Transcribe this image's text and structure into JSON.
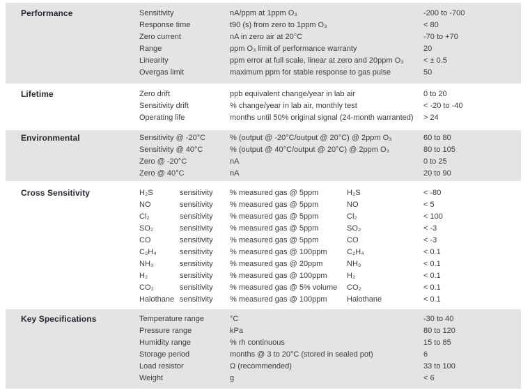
{
  "page": {
    "band_color": "#e4e4e4",
    "text_color": "#3b3b40",
    "title_color": "#26262e"
  },
  "sections": [
    {
      "title": "Performance",
      "shaded": true,
      "layout": "standard",
      "rows": [
        {
          "param": "Sensitivity",
          "desc": "nA/ppm at 1ppm O₃",
          "value": "-200 to -700"
        },
        {
          "param": "Response time",
          "desc": "t90 (s) from zero to 1ppm O₃",
          "value": "< 80"
        },
        {
          "param": "Zero current",
          "desc": "nA in zero air at 20°C",
          "value": "-70 to +70"
        },
        {
          "param": "Range",
          "desc": "ppm O₃ limit of performance warranty",
          "value": "20"
        },
        {
          "param": "Linearity",
          "desc": "ppm error at full scale, linear at zero and 20ppm O₃",
          "value": "< ± 0.5"
        },
        {
          "param": "Overgas limit",
          "desc": "maximum ppm for stable response to gas pulse",
          "value": "50"
        }
      ]
    },
    {
      "title": "Lifetime",
      "shaded": false,
      "layout": "standard",
      "rows": [
        {
          "param": "Zero drift",
          "desc": "ppb equivalent change/year in lab air",
          "value": "0 to 20"
        },
        {
          "param": "Sensitivity drift",
          "desc": "% change/year in lab air, monthly test",
          "value": "< -20 to -40"
        },
        {
          "param": "Operating life",
          "desc": "months until 50% original signal (24-month warranted)",
          "value": "> 24"
        }
      ]
    },
    {
      "title": "Environmental",
      "shaded": true,
      "layout": "standard",
      "rows": [
        {
          "param": "Sensitivity @ -20°C",
          "desc": "% (output @ -20°C/output @ 20°C) @ 2ppm O₃",
          "value": "60 to 80"
        },
        {
          "param": "Sensitivity @ 40°C",
          "desc": "% (output @ 40°C/output @ 20°C) @ 2ppm O₃",
          "value": "80 to 105"
        },
        {
          "param": "Zero @ -20°C",
          "desc": "nA",
          "value": "0 to 25"
        },
        {
          "param": "Zero @ 40°C",
          "desc": "nA",
          "value": "20 to 90"
        }
      ]
    },
    {
      "title": "Cross Sensitivity",
      "shaded": false,
      "layout": "cross",
      "rows": [
        {
          "gas": "H₂S",
          "label": "sensitivity",
          "desc": "% measured gas @ 5ppm",
          "gas2": "H₂S",
          "value": "< -80"
        },
        {
          "gas": "NO",
          "label": "sensitivity",
          "desc": "% measured gas @ 5ppm",
          "gas2": "NO",
          "value": "< 5"
        },
        {
          "gas": "Cl₂",
          "label": "sensitivity",
          "desc": "% measured gas @ 5ppm",
          "gas2": "Cl₂",
          "value": "< 100"
        },
        {
          "gas": "SO₂",
          "label": "sensitivity",
          "desc": "% measured gas @ 5ppm",
          "gas2": "SO₂",
          "value": "< -3"
        },
        {
          "gas": "CO",
          "label": "sensitivity",
          "desc": "% measured gas @ 5ppm",
          "gas2": "CO",
          "value": "< -3"
        },
        {
          "gas": "C₂H₄",
          "label": "sensitivity",
          "desc": "% measured gas @ 100ppm",
          "gas2": "C₂H₄",
          "value": "< 0.1"
        },
        {
          "gas": "NH₃",
          "label": "sensitivity",
          "desc": "% measured gas @ 20ppm",
          "gas2": "NH₃",
          "value": "< 0.1"
        },
        {
          "gas": "H₂",
          "label": "sensitivity",
          "desc": "% measured gas @ 100ppm",
          "gas2": "H₂",
          "value": "< 0.1"
        },
        {
          "gas": "CO₂",
          "label": "sensitivity",
          "desc": "% measured gas @ 5% volume",
          "gas2": "CO₂",
          "value": "< 0.1"
        },
        {
          "gas": "Halothane",
          "label": "sensitivity",
          "desc": "% measured gas @ 100ppm",
          "gas2": "Halothane",
          "value": "< 0.1"
        }
      ]
    },
    {
      "title": "Key Specifications",
      "shaded": true,
      "layout": "standard",
      "rows": [
        {
          "param": "Temperature range",
          "desc": "°C",
          "value": "-30 to 40"
        },
        {
          "param": "Pressure range",
          "desc": "kPa",
          "value": "80 to 120"
        },
        {
          "param": "Humidity range",
          "desc": "% rh continuous",
          "value": "15 to 85"
        },
        {
          "param": "Storage period",
          "desc": "months @ 3 to 20°C (stored in sealed pot)",
          "value": "6"
        },
        {
          "param": "Load resistor",
          "desc": "Ω (recommended)",
          "value": "33 to 100"
        },
        {
          "param": "Weight",
          "desc": "g",
          "value": "< 6"
        }
      ]
    }
  ]
}
